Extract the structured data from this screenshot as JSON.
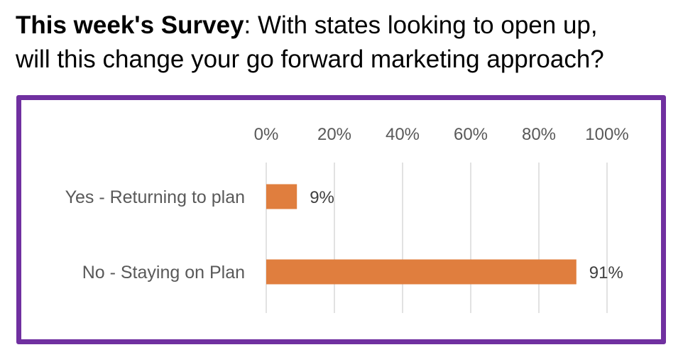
{
  "title": {
    "bold": "This week's Survey",
    "rest": ": With states looking to open up,",
    "line2": "will this change your go forward marketing approach?"
  },
  "colors": {
    "frame": "#7030a0",
    "bar": "#e07e3e",
    "grid": "#d9d9d9",
    "text": "#595959"
  },
  "chart_data": {
    "type": "bar",
    "orientation": "horizontal",
    "categories": [
      "Yes - Returning to plan",
      "No - Staying on Plan"
    ],
    "values": [
      9,
      91
    ],
    "data_labels": [
      "9%",
      "91%"
    ],
    "xlim": [
      0,
      100
    ],
    "x_ticks": [
      0,
      20,
      40,
      60,
      80,
      100
    ],
    "x_tick_labels": [
      "0%",
      "20%",
      "40%",
      "60%",
      "80%",
      "100%"
    ],
    "x_axis_position": "top",
    "grid": true,
    "legend": "none"
  }
}
